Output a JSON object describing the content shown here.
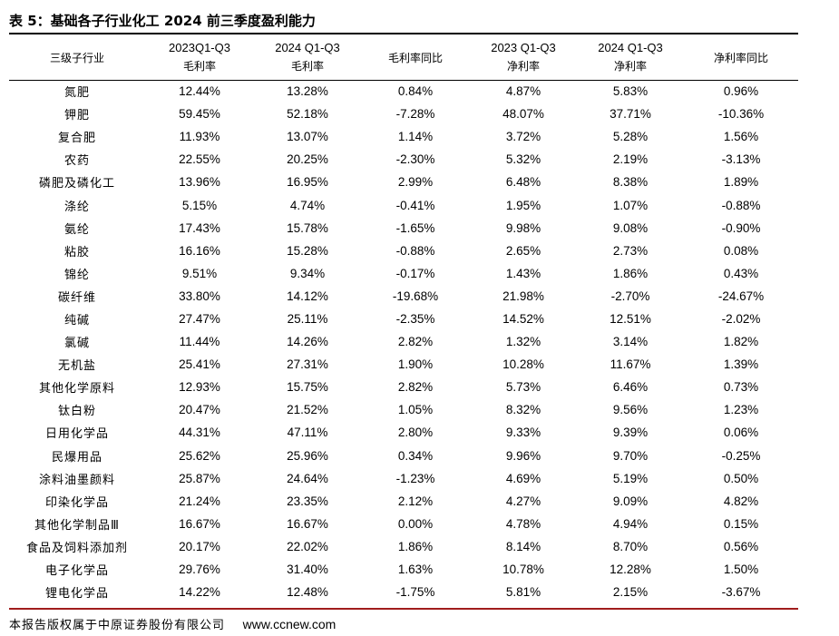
{
  "title": "表 5：基础各子行业化工 2024 前三季度盈利能力",
  "headers": [
    {
      "line1": "",
      "line2": "三级子行业"
    },
    {
      "line1": "2023Q1-Q3",
      "line2": "毛利率"
    },
    {
      "line1": "2024 Q1-Q3",
      "line2": "毛利率"
    },
    {
      "line1": "",
      "line2": "毛利率同比"
    },
    {
      "line1": "2023 Q1-Q3",
      "line2": "净利率"
    },
    {
      "line1": "2024 Q1-Q3",
      "line2": "净利率"
    },
    {
      "line1": "",
      "line2": "净利率同比"
    }
  ],
  "rows": [
    [
      "氮肥",
      "12.44%",
      "13.28%",
      "0.84%",
      "4.87%",
      "5.83%",
      "0.96%"
    ],
    [
      "钾肥",
      "59.45%",
      "52.18%",
      "-7.28%",
      "48.07%",
      "37.71%",
      "-10.36%"
    ],
    [
      "复合肥",
      "11.93%",
      "13.07%",
      "1.14%",
      "3.72%",
      "5.28%",
      "1.56%"
    ],
    [
      "农药",
      "22.55%",
      "20.25%",
      "-2.30%",
      "5.32%",
      "2.19%",
      "-3.13%"
    ],
    [
      "磷肥及磷化工",
      "13.96%",
      "16.95%",
      "2.99%",
      "6.48%",
      "8.38%",
      "1.89%"
    ],
    [
      "涤纶",
      "5.15%",
      "4.74%",
      "-0.41%",
      "1.95%",
      "1.07%",
      "-0.88%"
    ],
    [
      "氨纶",
      "17.43%",
      "15.78%",
      "-1.65%",
      "9.98%",
      "9.08%",
      "-0.90%"
    ],
    [
      "粘胶",
      "16.16%",
      "15.28%",
      "-0.88%",
      "2.65%",
      "2.73%",
      "0.08%"
    ],
    [
      "锦纶",
      "9.51%",
      "9.34%",
      "-0.17%",
      "1.43%",
      "1.86%",
      "0.43%"
    ],
    [
      "碳纤维",
      "33.80%",
      "14.12%",
      "-19.68%",
      "21.98%",
      "-2.70%",
      "-24.67%"
    ],
    [
      "纯碱",
      "27.47%",
      "25.11%",
      "-2.35%",
      "14.52%",
      "12.51%",
      "-2.02%"
    ],
    [
      "氯碱",
      "11.44%",
      "14.26%",
      "2.82%",
      "1.32%",
      "3.14%",
      "1.82%"
    ],
    [
      "无机盐",
      "25.41%",
      "27.31%",
      "1.90%",
      "10.28%",
      "11.67%",
      "1.39%"
    ],
    [
      "其他化学原料",
      "12.93%",
      "15.75%",
      "2.82%",
      "5.73%",
      "6.46%",
      "0.73%"
    ],
    [
      "钛白粉",
      "20.47%",
      "21.52%",
      "1.05%",
      "8.32%",
      "9.56%",
      "1.23%"
    ],
    [
      "日用化学品",
      "44.31%",
      "47.11%",
      "2.80%",
      "9.33%",
      "9.39%",
      "0.06%"
    ],
    [
      "民爆用品",
      "25.62%",
      "25.96%",
      "0.34%",
      "9.96%",
      "9.70%",
      "-0.25%"
    ],
    [
      "涂料油墨颜料",
      "25.87%",
      "24.64%",
      "-1.23%",
      "4.69%",
      "5.19%",
      "0.50%"
    ],
    [
      "印染化学品",
      "21.24%",
      "23.35%",
      "2.12%",
      "4.27%",
      "9.09%",
      "4.82%"
    ],
    [
      "其他化学制品Ⅲ",
      "16.67%",
      "16.67%",
      "0.00%",
      "4.78%",
      "4.94%",
      "0.15%"
    ],
    [
      "食品及饲料添加剂",
      "20.17%",
      "22.02%",
      "1.86%",
      "8.14%",
      "8.70%",
      "0.56%"
    ],
    [
      "电子化学品",
      "29.76%",
      "31.40%",
      "1.63%",
      "10.78%",
      "12.28%",
      "1.50%"
    ],
    [
      "锂电化学品",
      "14.22%",
      "12.48%",
      "-1.75%",
      "5.81%",
      "2.15%",
      "-3.67%"
    ]
  ],
  "footer": {
    "source": "本报告版权属于中原证券股份有限公司",
    "url": "www.ccnew.com"
  }
}
